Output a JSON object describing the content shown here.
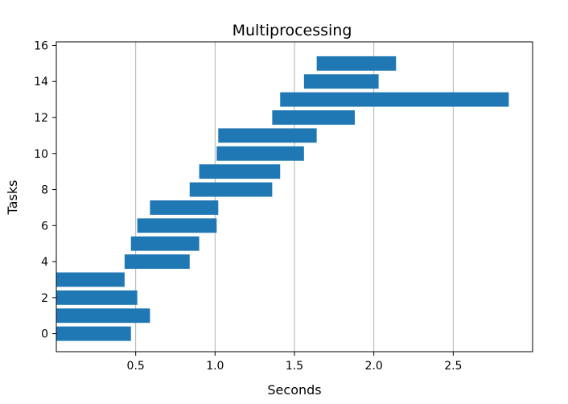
{
  "chart_data": {
    "type": "bar",
    "orientation": "horizontal",
    "title": "Multiprocessing",
    "xlabel": "Seconds",
    "ylabel": "Tasks",
    "xlim": [
      0.0,
      3.0
    ],
    "ylim": [
      -1.0,
      16.2
    ],
    "grid": "x",
    "bar_color": "#1f77b4",
    "xticks": [
      {
        "value": 0.5,
        "label": "0.5"
      },
      {
        "value": 1.0,
        "label": "1.0"
      },
      {
        "value": 1.5,
        "label": "1.5"
      },
      {
        "value": 2.0,
        "label": "2.0"
      },
      {
        "value": 2.5,
        "label": "2.5"
      }
    ],
    "yticks": [
      {
        "value": 0,
        "label": "0"
      },
      {
        "value": 2,
        "label": "2"
      },
      {
        "value": 4,
        "label": "4"
      },
      {
        "value": 6,
        "label": "6"
      },
      {
        "value": 8,
        "label": "8"
      },
      {
        "value": 10,
        "label": "10"
      },
      {
        "value": 12,
        "label": "12"
      },
      {
        "value": 14,
        "label": "14"
      },
      {
        "value": 16,
        "label": "16"
      }
    ],
    "tasks": [
      {
        "task": 0,
        "start": 0.0,
        "end": 0.47
      },
      {
        "task": 1,
        "start": 0.0,
        "end": 0.59
      },
      {
        "task": 2,
        "start": 0.0,
        "end": 0.51
      },
      {
        "task": 3,
        "start": 0.0,
        "end": 0.43
      },
      {
        "task": 4,
        "start": 0.43,
        "end": 0.84
      },
      {
        "task": 5,
        "start": 0.47,
        "end": 0.9
      },
      {
        "task": 6,
        "start": 0.51,
        "end": 1.01
      },
      {
        "task": 7,
        "start": 0.59,
        "end": 1.02
      },
      {
        "task": 8,
        "start": 0.84,
        "end": 1.36
      },
      {
        "task": 9,
        "start": 0.9,
        "end": 1.41
      },
      {
        "task": 10,
        "start": 1.01,
        "end": 1.56
      },
      {
        "task": 11,
        "start": 1.02,
        "end": 1.64
      },
      {
        "task": 12,
        "start": 1.36,
        "end": 1.88
      },
      {
        "task": 13,
        "start": 1.41,
        "end": 2.85
      },
      {
        "task": 14,
        "start": 1.56,
        "end": 2.03
      },
      {
        "task": 15,
        "start": 1.64,
        "end": 2.14
      }
    ]
  }
}
